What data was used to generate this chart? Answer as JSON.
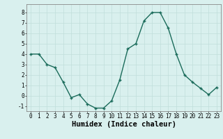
{
  "x": [
    0,
    1,
    2,
    3,
    4,
    5,
    6,
    7,
    8,
    9,
    10,
    11,
    12,
    13,
    14,
    15,
    16,
    17,
    18,
    19,
    20,
    21,
    22,
    23
  ],
  "y": [
    4.0,
    4.0,
    3.0,
    2.7,
    1.3,
    -0.2,
    0.1,
    -0.8,
    -1.2,
    -1.2,
    -0.5,
    1.5,
    4.5,
    5.0,
    7.2,
    8.0,
    8.0,
    6.5,
    4.0,
    2.0,
    1.3,
    0.7,
    0.1,
    0.8
  ],
  "xlabel": "Humidex (Indice chaleur)",
  "line_color": "#1a6b5a",
  "marker": "+",
  "marker_color": "#1a6b5a",
  "bg_color": "#d9f0ee",
  "grid_color": "#c0deda",
  "ylim": [
    -1.5,
    8.8
  ],
  "xlim": [
    -0.5,
    23.5
  ],
  "yticks": [
    -1,
    0,
    1,
    2,
    3,
    4,
    5,
    6,
    7,
    8
  ],
  "xticks": [
    0,
    1,
    2,
    3,
    4,
    5,
    6,
    7,
    8,
    9,
    10,
    11,
    12,
    13,
    14,
    15,
    16,
    17,
    18,
    19,
    20,
    21,
    22,
    23
  ],
  "xlabel_fontsize": 7.5,
  "tick_fontsize": 5.5,
  "linewidth": 1.0,
  "markersize": 3.5
}
